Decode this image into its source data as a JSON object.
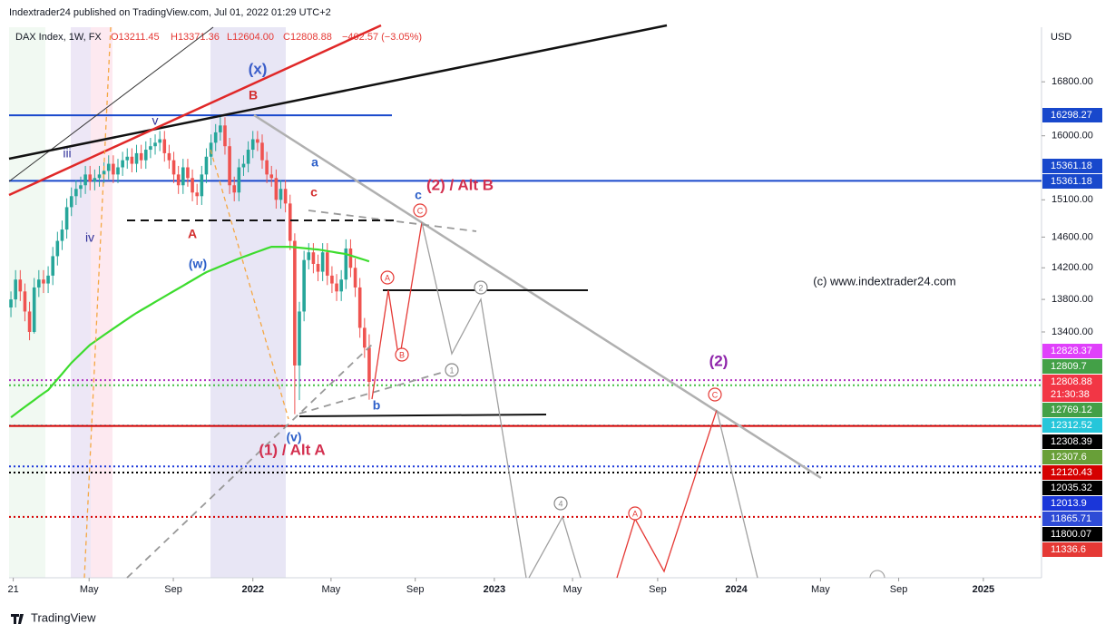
{
  "header": {
    "published": "Indextrader24 published on TradingView.com, Jul 01, 2022 01:29 UTC+2",
    "symbol": "DAX Index, 1W, FX",
    "open": "O13211.45",
    "high": "H13371.36",
    "low": "L12604.00",
    "close": "C12808.88",
    "change": "−402.57 (−3.05%)"
  },
  "footer": "TradingView",
  "chart_data": {
    "type": "candlestick",
    "y_axis_label": "USD",
    "log_scale": true,
    "up_color": "#26a69a",
    "down_color": "#ef5350",
    "ma_color": "#3ddc2e",
    "ylim": [
      10730,
      17650
    ],
    "yticks": [
      {
        "value": 16800,
        "label": "16800.00"
      },
      {
        "value": 16000,
        "label": "16000.00"
      },
      {
        "value": 15100,
        "label": "15100.00"
      },
      {
        "value": 14600,
        "label": "14600.00"
      },
      {
        "value": 14200,
        "label": "14200.00"
      },
      {
        "value": 13800,
        "label": "13800.00"
      },
      {
        "value": 13400,
        "label": "13400.00"
      }
    ],
    "xlim": [
      -0.4,
      221.5
    ],
    "xticks": [
      {
        "value": 0.5,
        "label": "21"
      },
      {
        "value": 16.8,
        "label": "May"
      },
      {
        "value": 34.9,
        "label": "Sep"
      },
      {
        "value": 52,
        "label": "2022"
      },
      {
        "value": 68.8,
        "label": "May"
      },
      {
        "value": 86.9,
        "label": "Sep"
      },
      {
        "value": 103.9,
        "label": "2023"
      },
      {
        "value": 120.7,
        "label": "May"
      },
      {
        "value": 139,
        "label": "Sep"
      },
      {
        "value": 155.9,
        "label": "2024"
      },
      {
        "value": 174,
        "label": "May"
      },
      {
        "value": 190.8,
        "label": "Sep"
      },
      {
        "value": 209,
        "label": "2025"
      }
    ],
    "open": [
      13700,
      13800,
      14050,
      13900,
      13650,
      13400,
      13950,
      14050,
      14000,
      14100,
      14350,
      14550,
      14700,
      15000,
      15150,
      15250,
      15300,
      15450,
      15350,
      15400,
      15450,
      15500,
      15600,
      15450,
      15550,
      15650,
      15700,
      15600,
      15750,
      15650,
      15800,
      15850,
      15900,
      15950,
      15750,
      15650,
      15450,
      15300,
      15550,
      15400,
      15200,
      15150,
      15450,
      15700,
      15900,
      16050,
      16150,
      15850,
      15300,
      15200,
      15550,
      15600,
      15800,
      15950,
      15900,
      15650,
      15450,
      15400,
      15100,
      15250,
      15050,
      14550,
      13000,
      13650,
      14300,
      14400,
      14250,
      14150,
      14400,
      14100,
      14000,
      13900,
      14050,
      14450,
      14200,
      13950,
      13450,
      13211.45
    ],
    "high": [
      13900,
      14170,
      14170,
      14000,
      13770,
      14070,
      14170,
      14170,
      14220,
      14470,
      14670,
      14820,
      15120,
      15270,
      15370,
      15420,
      15570,
      15570,
      15520,
      15570,
      15620,
      15720,
      15720,
      15670,
      15770,
      15820,
      15820,
      15870,
      15870,
      15920,
      15970,
      16020,
      16070,
      16070,
      15870,
      15770,
      15570,
      15670,
      15670,
      15520,
      15320,
      15570,
      15820,
      16020,
      16170,
      16290,
      16270,
      15970,
      15420,
      15670,
      15720,
      15920,
      16070,
      16070,
      16020,
      15770,
      15570,
      15520,
      15370,
      15370,
      15170,
      14650,
      13770,
      14420,
      14520,
      14520,
      14370,
      14520,
      14520,
      14220,
      14120,
      14170,
      14570,
      14570,
      14320,
      14070,
      13570,
      13371.36
    ],
    "low": [
      13580,
      13700,
      13780,
      13530,
      13300,
      13380,
      13830,
      13880,
      13880,
      13980,
      14230,
      14430,
      14580,
      14880,
      15030,
      15130,
      15180,
      15230,
      15230,
      15280,
      15330,
      15380,
      15330,
      15330,
      15430,
      15530,
      15480,
      15480,
      15530,
      15530,
      15680,
      15730,
      15780,
      15630,
      15530,
      15330,
      15180,
      15180,
      15280,
      15080,
      15030,
      15030,
      15330,
      15580,
      15780,
      15930,
      15730,
      15180,
      15080,
      15080,
      15430,
      15480,
      15680,
      15780,
      15530,
      15330,
      15280,
      14980,
      14980,
      14930,
      14430,
      12440,
      12600,
      13530,
      14180,
      14130,
      14030,
      14030,
      13980,
      13880,
      13780,
      13780,
      13930,
      14080,
      13830,
      13330,
      13090,
      12604
    ],
    "close": [
      13800,
      14050,
      13900,
      13650,
      13400,
      13950,
      14050,
      14000,
      14100,
      14350,
      14550,
      14700,
      15000,
      15150,
      15250,
      15300,
      15450,
      15350,
      15400,
      15450,
      15500,
      15600,
      15450,
      15550,
      15650,
      15700,
      15600,
      15750,
      15650,
      15800,
      15850,
      15900,
      15950,
      15750,
      15650,
      15450,
      15300,
      15550,
      15400,
      15200,
      15150,
      15450,
      15700,
      15900,
      16050,
      16150,
      15850,
      15300,
      15200,
      15550,
      15600,
      15800,
      15950,
      15900,
      15650,
      15450,
      15400,
      15100,
      15250,
      15050,
      14550,
      13000,
      13650,
      14300,
      14400,
      14250,
      14150,
      14400,
      14100,
      14000,
      13900,
      14050,
      14450,
      14200,
      13950,
      13450,
      13211.45,
      12808.88
    ],
    "ma": [
      12405,
      12444,
      12483,
      12522,
      12561,
      12600,
      12639,
      12678,
      12714,
      12777,
      12840,
      12903,
      12966,
      13030,
      13084,
      13138,
      13192,
      13245,
      13284,
      13323,
      13362,
      13401,
      13440,
      13479,
      13518,
      13557,
      13596,
      13632,
      13666,
      13700,
      13734,
      13768,
      13802,
      13836,
      13870,
      13904,
      13938,
      13971,
      14006,
      14041,
      14076,
      14111,
      14144,
      14169,
      14194,
      14219,
      14244,
      14269,
      14294,
      14319,
      14342,
      14364,
      14386,
      14408,
      14430,
      14452,
      14472,
      14472,
      14472,
      14472,
      14472,
      14466,
      14460,
      14454,
      14448,
      14442,
      14437,
      14427,
      14417,
      14407,
      14397,
      14387,
      14378,
      14359,
      14340,
      14321,
      14302,
      14283
    ],
    "price_tags": [
      {
        "value": 16298.27,
        "color": "#1848cc",
        "line": "solid",
        "line_color": "#1848cc"
      },
      {
        "value": 15361.18,
        "color": "#1848cc"
      },
      {
        "value": 15361.18,
        "color": "#1848cc",
        "line": "solid",
        "line_color": "#1848cc"
      },
      {
        "value": 12828.37,
        "color": "#e040fb",
        "line": "dotted",
        "line_color": "#b030c0"
      },
      {
        "value": 12809.7,
        "color": "#43a047"
      },
      {
        "value": 12808.88,
        "color": "#f23645",
        "countdown": "21:30:38"
      },
      {
        "value": 12769.12,
        "color": "#43a047",
        "line": "dotted",
        "line_color": "#43c043"
      },
      {
        "value": 12312.52,
        "color": "#26c6da",
        "line": "dotted",
        "line_color": "#26c6da"
      },
      {
        "value": 12308.39,
        "color": "#000000",
        "line": "solid",
        "line_color": "#d50000"
      },
      {
        "value": 12307.6,
        "color": "#689f38"
      },
      {
        "value": 12120.43,
        "color": "#d50000"
      },
      {
        "value": 12035.32,
        "color": "#000000"
      },
      {
        "value": 12013.9,
        "color": "#1a36d9"
      },
      {
        "value": 11865.71,
        "color": "#2e4bd6",
        "line": "dotted",
        "line_color": "#1a36d9"
      },
      {
        "value": 11800.07,
        "color": "#000000",
        "line": "dotted",
        "line_color": "#000000"
      },
      {
        "value": 11336.6,
        "color": "#e53935",
        "line": "dotted",
        "line_color": "#d50000"
      }
    ],
    "annotations": [
      {
        "text": "(x)",
        "color": "#3a5dc9"
      },
      {
        "text": "B",
        "color": "#d32f2f"
      },
      {
        "text": "v",
        "color": "#30309a"
      },
      {
        "text": "iii",
        "color": "#30309a"
      },
      {
        "text": "iv",
        "color": "#30309a"
      },
      {
        "text": "a",
        "color": "#2c5fc9"
      },
      {
        "text": "c",
        "color": "#d32f2f"
      },
      {
        "text": "A",
        "color": "#d32f2f"
      },
      {
        "text": "(w)",
        "color": "#2c5fc9"
      },
      {
        "text": "(2) / Alt B",
        "color": "#d32f4f"
      },
      {
        "text": "c",
        "color": "#2c5fc9"
      },
      {
        "text": "b",
        "color": "#2c5fc9"
      },
      {
        "text": "(v)",
        "color": "#2c5fc9"
      },
      {
        "text": "(1) / Alt A",
        "color": "#d32f4f"
      },
      {
        "text": "(2)",
        "color": "#8e24aa"
      },
      {
        "text": "(c) www.indextrader24.com",
        "color": "#131722"
      }
    ],
    "wave_marks": [
      {
        "text": "A",
        "color": "#e53935"
      },
      {
        "text": "B",
        "color": "#e53935"
      },
      {
        "text": "C",
        "color": "#e53935"
      },
      {
        "text": "2",
        "color": "#888888"
      },
      {
        "text": "1",
        "color": "#888888"
      },
      {
        "text": "4",
        "color": "#888888"
      },
      {
        "text": "A",
        "color": "#e53935"
      },
      {
        "text": "C",
        "color": "#e53935"
      }
    ]
  }
}
